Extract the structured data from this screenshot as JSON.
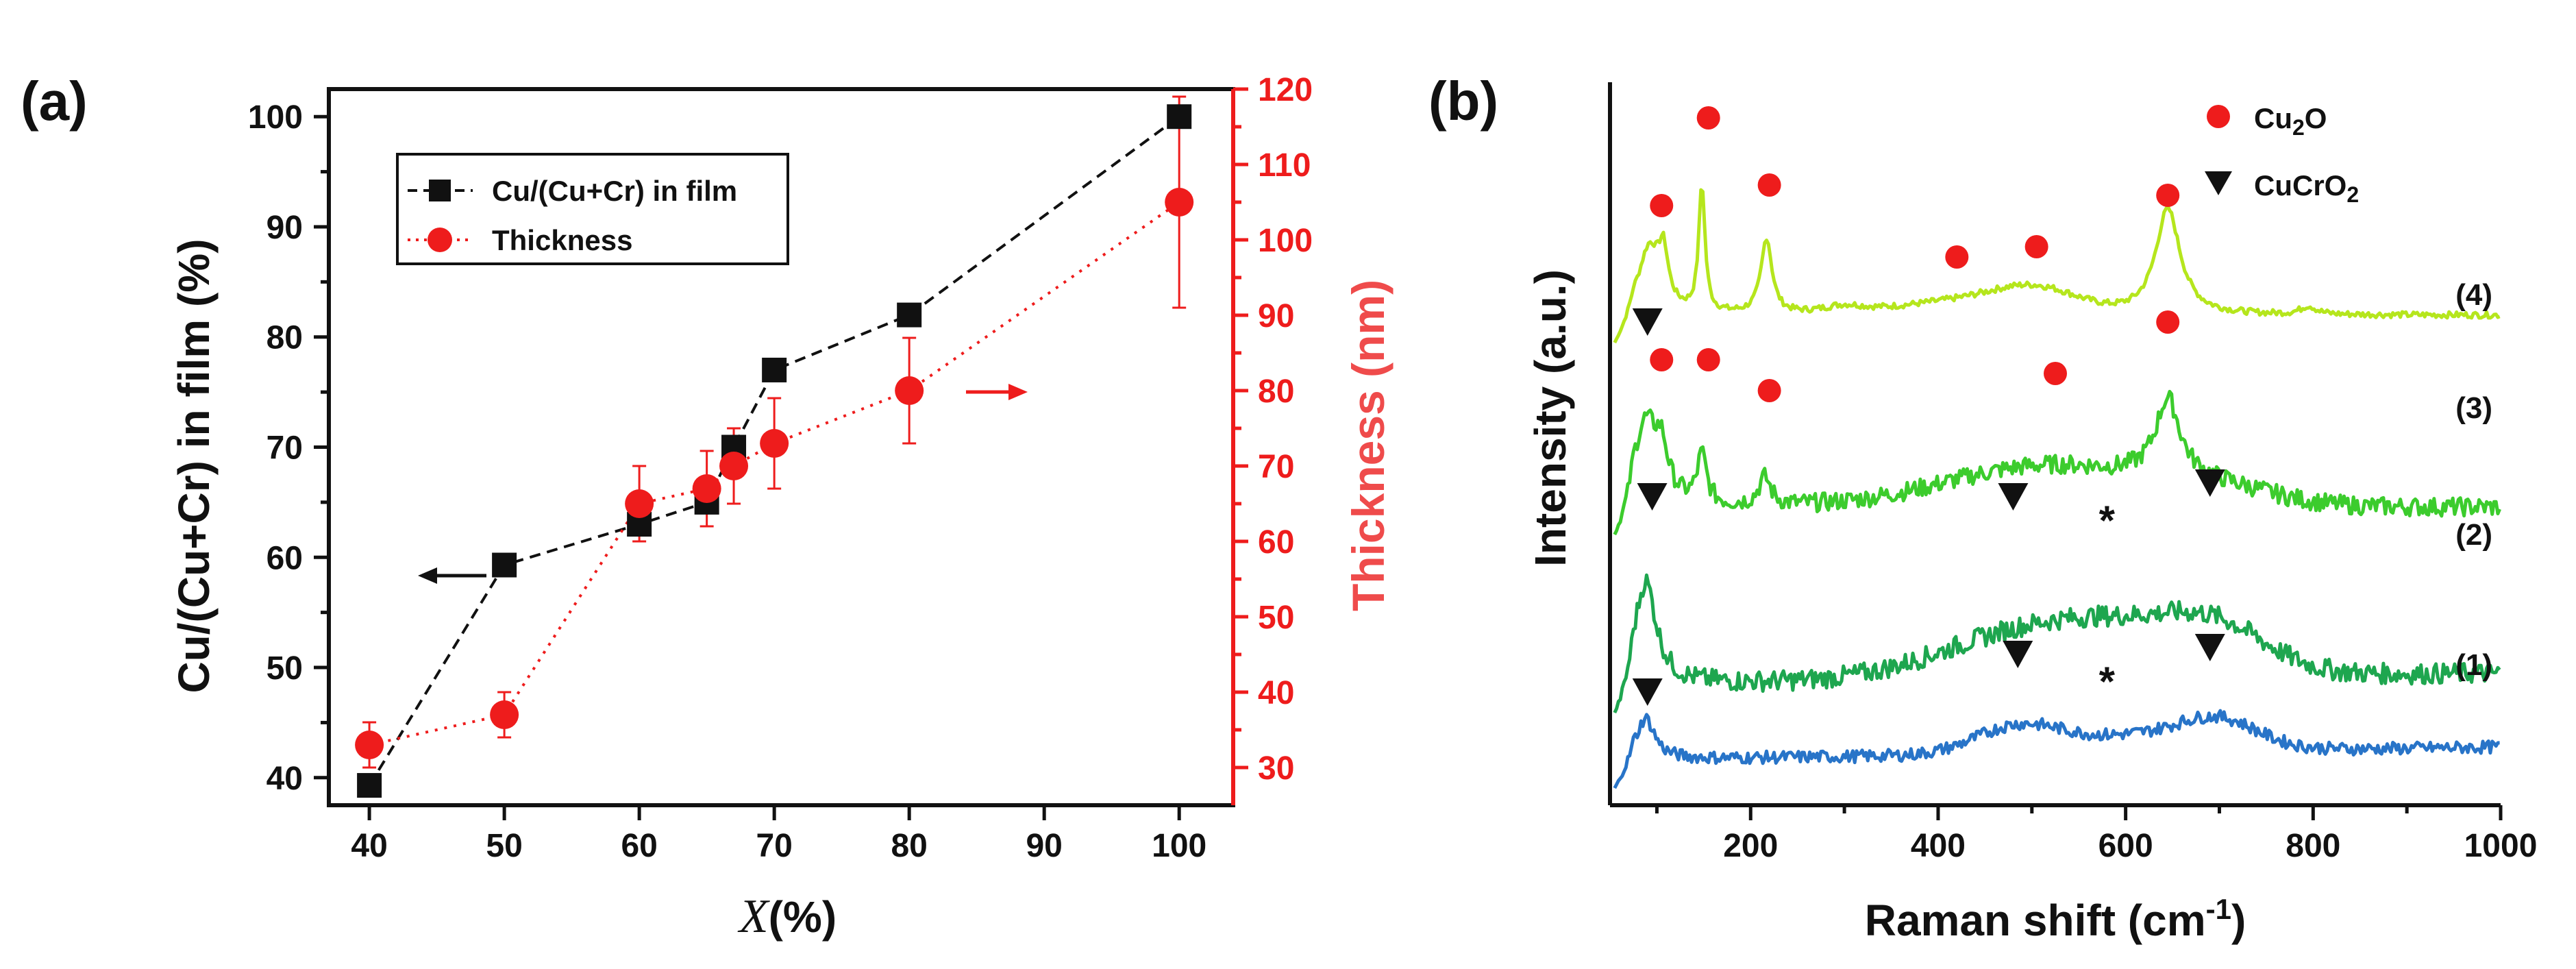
{
  "chart_data": [
    {
      "type": "line",
      "panel": "(a)",
      "xlabel_italic": "X",
      "xlabel_suffix": "(%)",
      "ylabel": "Cu/(Cu+Cr) in film (%)",
      "y2label": "Thickness (nm)",
      "xlim": [
        37,
        104
      ],
      "ylim": [
        37.5,
        102.5
      ],
      "y2lim": [
        25,
        120
      ],
      "xticks": [
        40,
        50,
        60,
        70,
        80,
        90,
        100
      ],
      "yticks": [
        40,
        50,
        60,
        70,
        80,
        90,
        100
      ],
      "y2ticks": [
        30,
        40,
        50,
        60,
        70,
        80,
        90,
        100,
        110,
        120
      ],
      "series": [
        {
          "name": "Cu/(Cu+Cr) in film",
          "axis": "left",
          "color": "#000000",
          "marker": "square",
          "x": [
            40,
            50,
            60,
            65,
            67,
            70,
            80,
            100
          ],
          "values": [
            39.3,
            59.3,
            63,
            65,
            70,
            77,
            82,
            100
          ]
        },
        {
          "name": "Thickness",
          "axis": "right",
          "color": "#ee1c1c",
          "marker": "circle",
          "x": [
            40,
            50,
            60,
            65,
            67,
            70,
            80,
            100
          ],
          "values": [
            33,
            37,
            65,
            67,
            70,
            73,
            80,
            105
          ],
          "err": [
            3,
            3,
            5,
            5,
            5,
            6,
            7,
            14
          ]
        }
      ],
      "legend_position": "top-left"
    },
    {
      "type": "line",
      "panel": "(b)",
      "xlabel": "Raman shift (cm",
      "xlabel_sup": "-1",
      "xlabel_close": ")",
      "ylabel": "Intensity (a.u.)",
      "xlim": [
        50,
        1000
      ],
      "xticks": [
        200,
        400,
        600,
        800,
        1000
      ],
      "series": [
        {
          "name": "(4)",
          "color": "#b5e61d"
        },
        {
          "name": "(3)",
          "color": "#3ccc2d"
        },
        {
          "name": "(2)",
          "color": "#1ea64f"
        },
        {
          "name": "(1)",
          "color": "#2874c8"
        }
      ],
      "legend": [
        {
          "label": "Cu",
          "sub": "2",
          "label_end": "O",
          "marker": "red-circle",
          "color": "#ee1c1c"
        },
        {
          "label": "CuCrO",
          "sub": "2",
          "label_end": "",
          "marker": "black-triangle",
          "color": "#111111"
        }
      ],
      "annotations": {
        "cu2o_markers": [
          {
            "trace": "(4)",
            "x": [
              105,
              155,
              220,
              420,
              505,
              645
            ]
          },
          {
            "trace": "(3)",
            "x": [
              105,
              155,
              220,
              525,
              645
            ]
          }
        ],
        "cucro2_markers": [
          {
            "trace": "(3)",
            "x": [
              90
            ]
          },
          {
            "trace": "(2)",
            "x": [
              95,
              480,
              690
            ]
          },
          {
            "trace": "(1)",
            "x": [
              90,
              485,
              690
            ]
          }
        ],
        "asterisk": "*",
        "asterisk_positions": [
          {
            "trace": "(2)",
            "x": 580
          },
          {
            "trace": "(1)",
            "x": 580
          }
        ]
      }
    }
  ]
}
